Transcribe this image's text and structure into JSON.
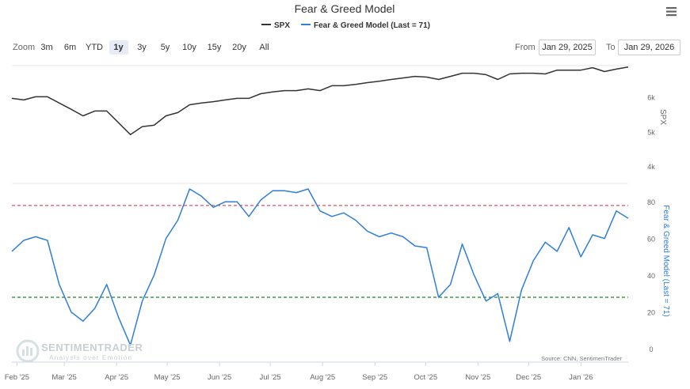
{
  "controls": {
    "zoom_label": "Zoom",
    "zoom_buttons": [
      {
        "label": "3m"
      },
      {
        "label": "6m"
      },
      {
        "label": "YTD"
      },
      {
        "label": "1y",
        "selected": true
      },
      {
        "label": "3y"
      },
      {
        "label": "5y"
      },
      {
        "label": "10y"
      },
      {
        "label": "15y"
      },
      {
        "label": "20y"
      },
      {
        "label": "All"
      }
    ],
    "from_label": "From",
    "from": "Jan 29, 2025",
    "to_label": "To",
    "to": "Jan 29, 2026"
  },
  "chart_data": [
    {
      "type": "line",
      "title": "Fear & Greed Model",
      "series": [
        {
          "name": "SPX",
          "color": "#333333",
          "values": [
            5955,
            5910,
            6000,
            6000,
            5820,
            5640,
            5450,
            5590,
            5590,
            5250,
            4910,
            5140,
            5180,
            5450,
            5545,
            5770,
            5820,
            5860,
            5910,
            5955,
            5955,
            6090,
            6140,
            6180,
            6180,
            6230,
            6180,
            6320,
            6320,
            6360,
            6410,
            6450,
            6500,
            6545,
            6590,
            6570,
            6500,
            6590,
            6680,
            6680,
            6640,
            6500,
            6660,
            6680,
            6680,
            6660,
            6770,
            6770,
            6770,
            6840,
            6730,
            6800,
            6860
          ]
        }
      ],
      "ylim": [
        3500,
        6900
      ],
      "yticks": [
        {
          "value": 4000,
          "label": "4k"
        },
        {
          "value": 5000,
          "label": "5k"
        },
        {
          "value": 6000,
          "label": "6k"
        }
      ]
    },
    {
      "type": "line",
      "series": [
        {
          "name": "Fear & Greed Model (Last = 71)",
          "color": "#2f7ed8",
          "values": [
            53,
            59,
            61,
            59,
            35,
            20,
            15,
            22,
            35,
            17,
            2,
            26,
            40,
            60,
            70,
            87,
            83,
            77,
            80,
            80,
            72,
            81,
            86,
            86,
            85,
            87,
            75,
            72,
            74,
            70,
            64,
            61,
            63,
            61,
            56,
            55,
            28,
            35,
            57,
            40,
            26,
            30,
            4,
            32,
            48,
            58,
            53,
            66,
            50,
            62,
            60,
            75,
            71
          ]
        }
      ],
      "ylim": [
        -6,
        90
      ],
      "yticks": [
        0,
        20,
        40,
        60,
        80
      ],
      "reference_lines": [
        {
          "value": 78,
          "color": "#e0505f"
        },
        {
          "value": 28,
          "color": "#1e8a1e"
        }
      ],
      "xticks": [
        "Feb '25",
        "Mar '25",
        "Apr '25",
        "May '25",
        "Jun '25",
        "Jul '25",
        "Aug '25",
        "Sep '25",
        "Oct '25",
        "Nov '25",
        "Dec '25",
        "Jan '26"
      ],
      "source": "Source: CNN, SentimenTrader",
      "watermark": {
        "name": "SENTIMENTRADER",
        "tagline": "Analysis over Emotion"
      }
    }
  ]
}
